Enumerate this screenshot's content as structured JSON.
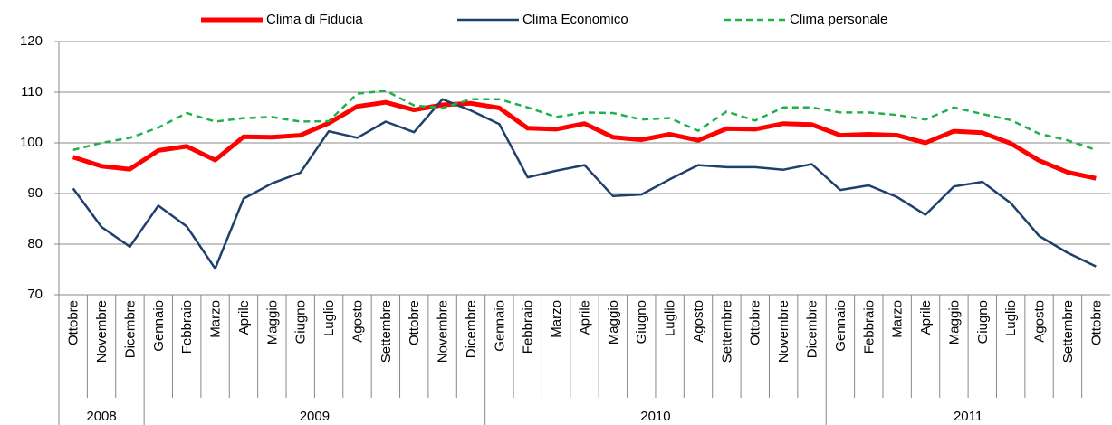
{
  "chart_data": {
    "type": "line",
    "categories": [
      "Ottobre",
      "Novembre",
      "Dicembre",
      "Gennaio",
      "Febbraio",
      "Marzo",
      "Aprile",
      "Maggio",
      "Giugno",
      "Luglio",
      "Agosto",
      "Settembre",
      "Ottobre",
      "Novembre",
      "Dicembre",
      "Gennaio",
      "Febbraio",
      "Marzo",
      "Aprile",
      "Maggio",
      "Giugno",
      "Luglio",
      "Agosto",
      "Settembre",
      "Ottobre",
      "Novembre",
      "Dicembre",
      "Gennaio",
      "Febbraio",
      "Marzo",
      "Aprile",
      "Maggio",
      "Giugno",
      "Luglio",
      "Agosto",
      "Settembre",
      "Ottobre"
    ],
    "years": [
      "2008",
      "2009",
      "2010",
      "2011"
    ],
    "series": [
      {
        "name": "Clima di Fiducia",
        "color": "#ff0000",
        "dash": false,
        "width": 5,
        "values": [
          97.2,
          95.4,
          94.8,
          98.5,
          99.3,
          96.6,
          101.2,
          101.1,
          101.5,
          103.9,
          107.2,
          108.0,
          106.5,
          107.5,
          107.8,
          106.9,
          102.9,
          102.7,
          103.8,
          101.1,
          100.6,
          101.7,
          100.5,
          102.8,
          102.7,
          103.8,
          103.6,
          101.5,
          101.7,
          101.5,
          100.0,
          102.3,
          102.0,
          99.9,
          96.5,
          94.2,
          93.0
        ]
      },
      {
        "name": "Clima Economico",
        "color": "#1f3f6e",
        "dash": false,
        "width": 2.5,
        "values": [
          91.0,
          83.4,
          79.5,
          87.6,
          83.5,
          75.2,
          89.0,
          92.0,
          94.1,
          102.3,
          101.0,
          104.2,
          102.1,
          108.6,
          106.4,
          103.7,
          93.2,
          94.5,
          95.6,
          89.5,
          89.8,
          92.8,
          95.6,
          95.2,
          95.2,
          94.7,
          95.8,
          90.7,
          91.6,
          89.3,
          85.8,
          91.4,
          92.3,
          88.1,
          81.6,
          78.3,
          75.6
        ]
      },
      {
        "name": "Clima personale",
        "color": "#1fb24a",
        "dash": true,
        "width": 2.5,
        "values": [
          98.6,
          100.0,
          101.0,
          103.0,
          105.9,
          104.2,
          104.9,
          105.1,
          104.2,
          104.3,
          109.7,
          110.3,
          107.4,
          106.9,
          108.6,
          108.6,
          107.0,
          105.1,
          106.0,
          105.9,
          104.6,
          104.9,
          102.4,
          106.2,
          104.4,
          107.0,
          107.0,
          106.0,
          106.0,
          105.5,
          104.6,
          107.0,
          105.7,
          104.5,
          101.8,
          100.5,
          98.6
        ]
      }
    ],
    "ylim": [
      70,
      120
    ],
    "yticks": [
      70,
      80,
      90,
      100,
      110,
      120
    ],
    "grid": true,
    "legend": "top"
  }
}
